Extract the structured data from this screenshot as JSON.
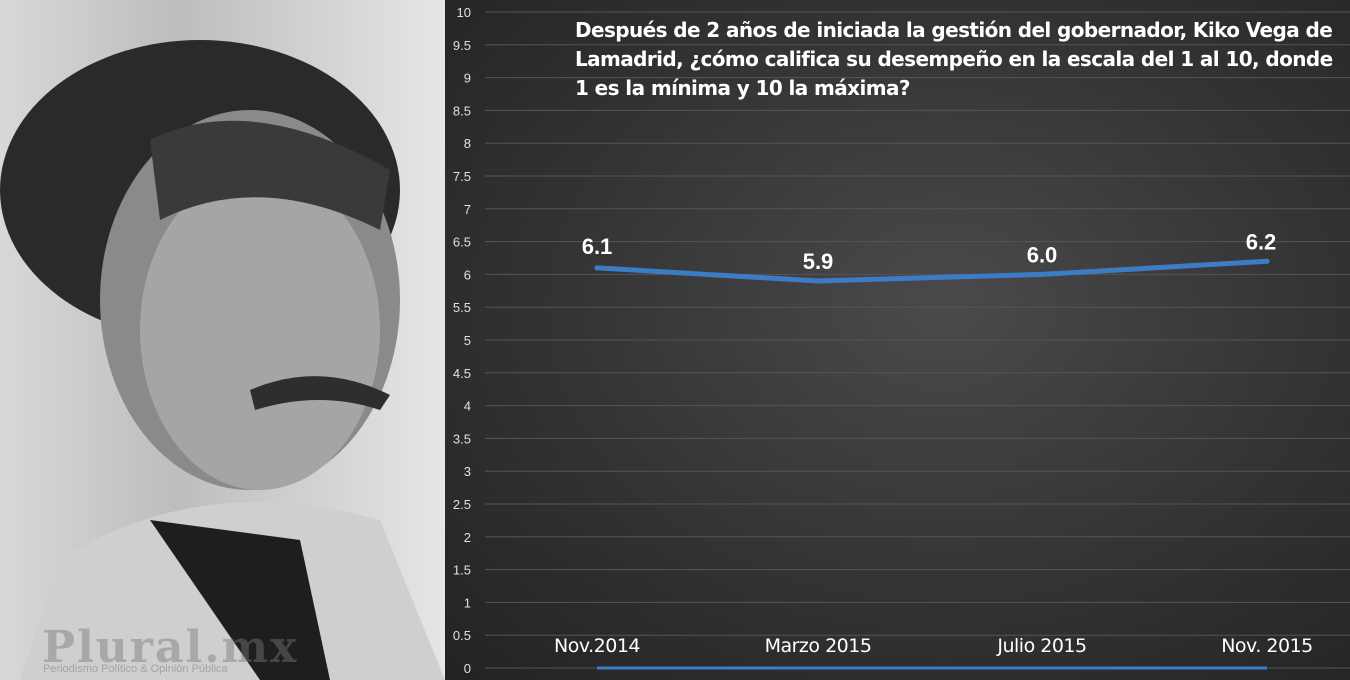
{
  "photo": {
    "watermark_logo": "Plural.mx",
    "watermark_tagline": "Periodismo Político & Opinión Pública"
  },
  "chart_data": {
    "type": "line",
    "title": "Después de 2 años de iniciada la gestión del gobernador, Kiko Vega de Lamadrid, ¿cómo califica su desempeño en la escala del 1 al 10, donde 1 es la mínima y 10 la máxima?",
    "categories": [
      "Nov.2014",
      "Marzo 2015",
      "Julio 2015",
      "Nov. 2015"
    ],
    "series": [
      {
        "values": [
          6.1,
          5.9,
          6.0,
          6.2
        ],
        "labels": [
          "6.1",
          "5.9",
          "6.0",
          "6.2"
        ],
        "color": "#3b7cc4"
      }
    ],
    "yticks": [
      "0",
      "0.5",
      "1",
      "1.5",
      "2",
      "2.5",
      "3",
      "3.5",
      "4",
      "4.5",
      "5",
      "5.5",
      "6",
      "6.5",
      "7",
      "7.5",
      "8",
      "8.5",
      "9",
      "9.5",
      "10"
    ],
    "ylim": [
      0,
      10
    ],
    "grid": true,
    "xlabel": "",
    "ylabel": ""
  }
}
